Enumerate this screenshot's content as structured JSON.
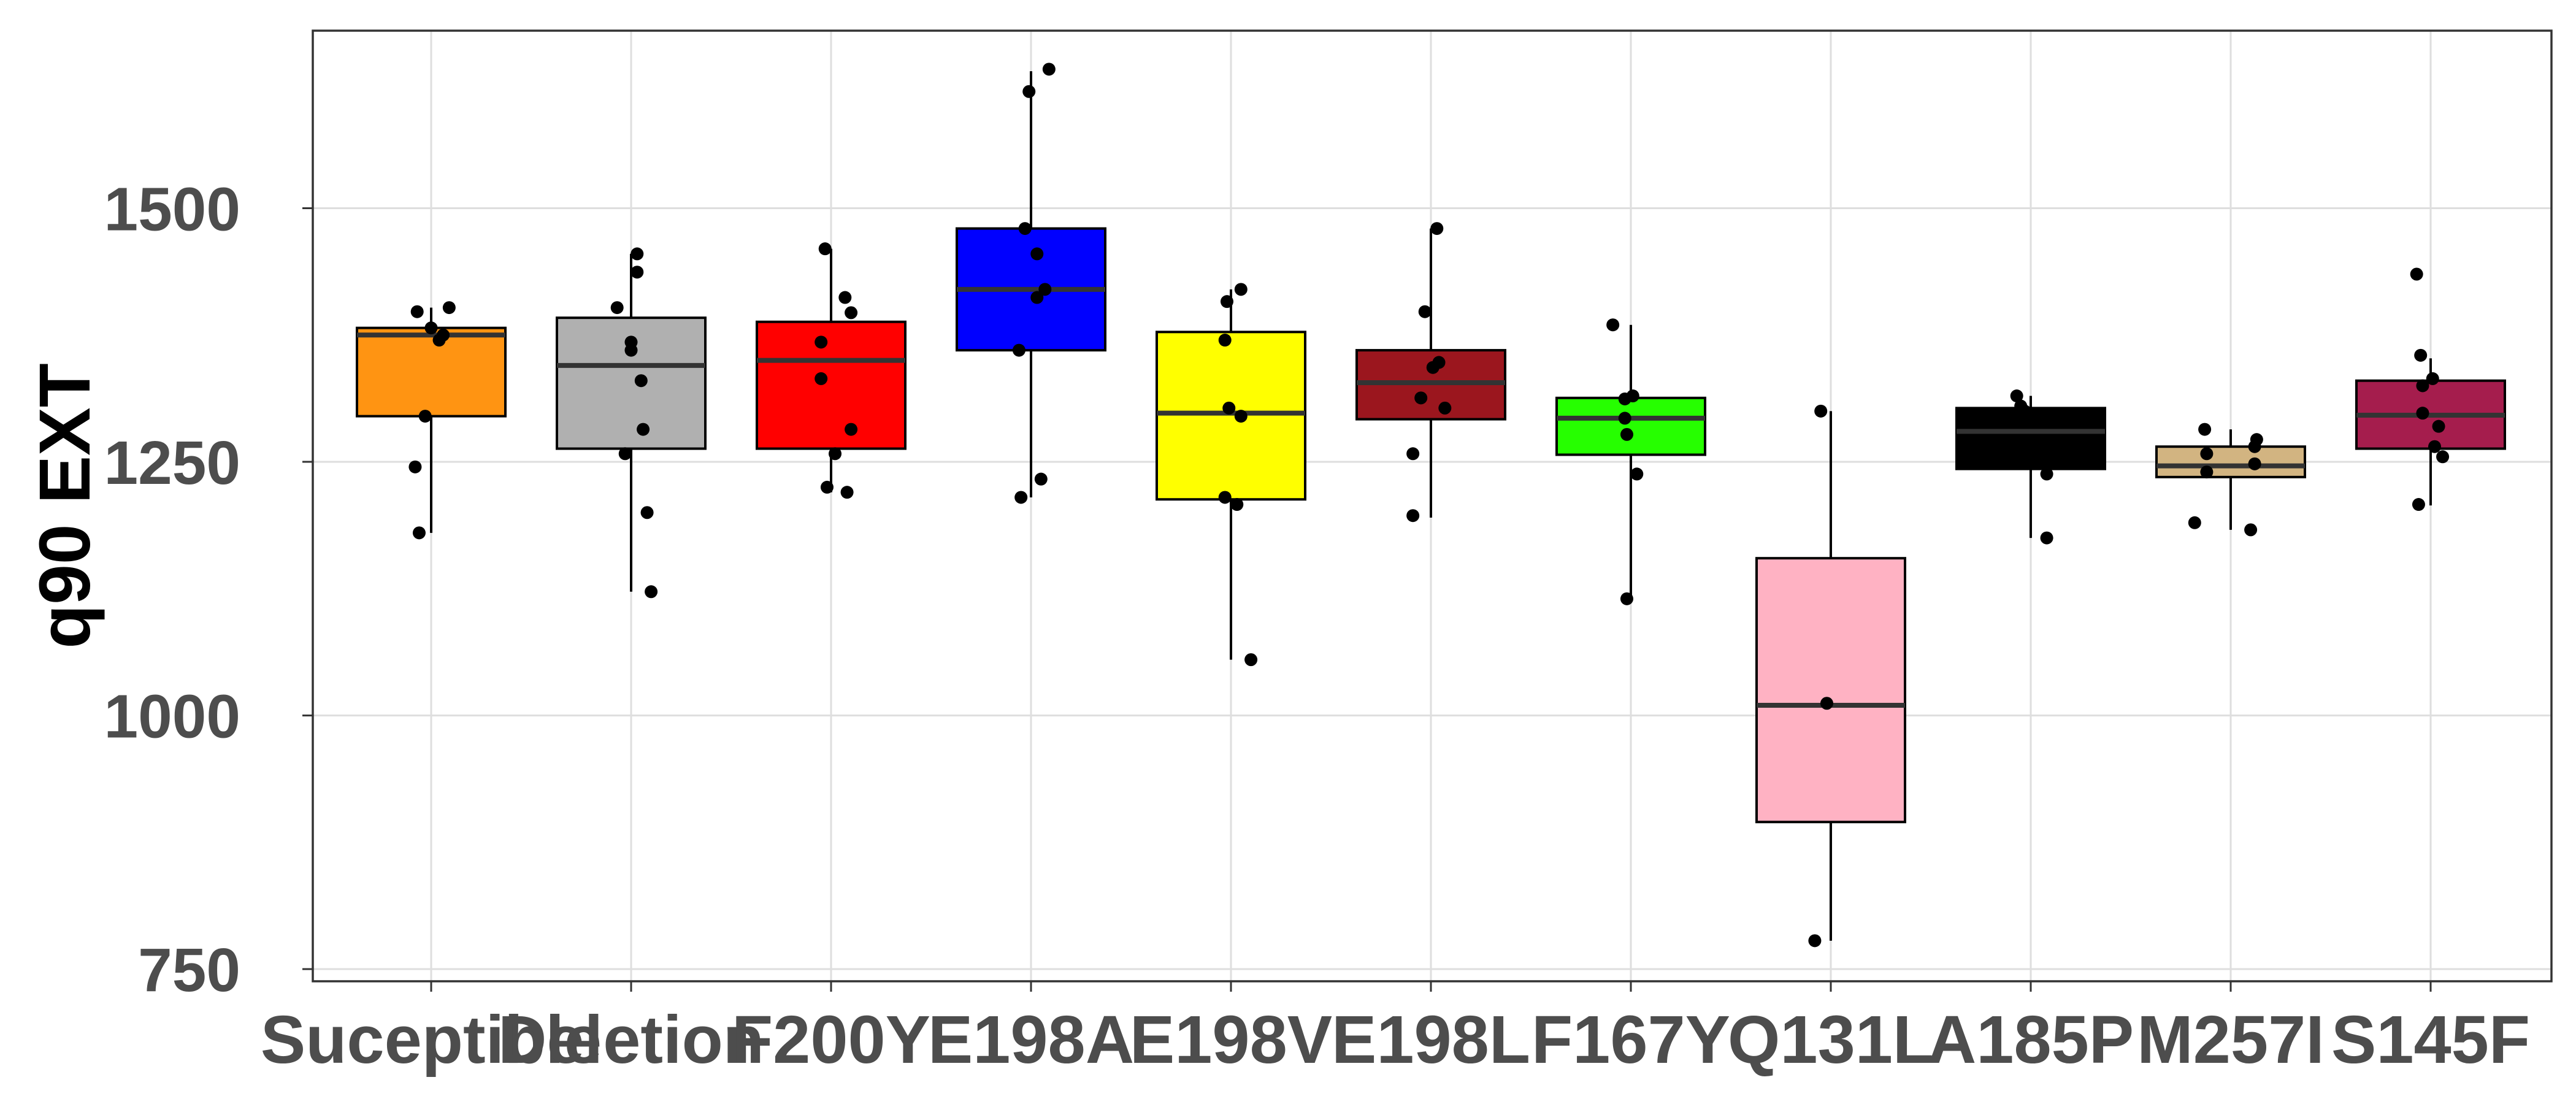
{
  "chart_data": {
    "type": "boxplot",
    "title": "",
    "xlabel": "",
    "ylabel": "q90 EXT",
    "ylim": [
      738,
      1675
    ],
    "yticks": [
      750,
      1000,
      1250,
      1500
    ],
    "grid": true,
    "legend": "none",
    "categories": [
      "Suceptible",
      "Deletion",
      "F200Y",
      "E198A",
      "E198V",
      "E198L",
      "F167Y",
      "Q131L",
      "A185P",
      "M257I",
      "S145F"
    ],
    "colors": [
      "#ff9412",
      "#b0b0b0",
      "#ff0000",
      "#0000ff",
      "#ffff00",
      "#9b161e",
      "#26ff00",
      "#ffb2c3",
      "#000000",
      "#d2b481",
      "#a51d4d"
    ],
    "boxes": [
      {
        "category": "Suceptible",
        "whisker_low": 1180,
        "q1": 1295,
        "median": 1375,
        "q3": 1382,
        "whisker_high": 1402
      },
      {
        "category": "Deletion",
        "whisker_low": 1122,
        "q1": 1263,
        "median": 1345,
        "q3": 1392,
        "whisker_high": 1455
      },
      {
        "category": "F200Y",
        "whisker_low": 1220,
        "q1": 1263,
        "median": 1350,
        "q3": 1388,
        "whisker_high": 1460
      },
      {
        "category": "E198A",
        "whisker_low": 1215,
        "q1": 1360,
        "median": 1420,
        "q3": 1480,
        "whisker_high": 1635
      },
      {
        "category": "E198V",
        "whisker_low": 1055,
        "q1": 1213,
        "median": 1298,
        "q3": 1378,
        "whisker_high": 1420
      },
      {
        "category": "E198L",
        "whisker_low": 1195,
        "q1": 1292,
        "median": 1328,
        "q3": 1360,
        "whisker_high": 1480
      },
      {
        "category": "F167Y",
        "whisker_low": 1115,
        "q1": 1257,
        "median": 1293,
        "q3": 1313,
        "whisker_high": 1385
      },
      {
        "category": "Q131L",
        "whisker_low": 778,
        "q1": 895,
        "median": 1010,
        "q3": 1155,
        "whisker_high": 1300
      },
      {
        "category": "A185P",
        "whisker_low": 1175,
        "q1": 1243,
        "median": 1280,
        "q3": 1303,
        "whisker_high": 1315
      },
      {
        "category": "M257I",
        "whisker_low": 1183,
        "q1": 1235,
        "median": 1246,
        "q3": 1265,
        "whisker_high": 1282
      },
      {
        "category": "S145F",
        "whisker_low": 1207,
        "q1": 1263,
        "median": 1296,
        "q3": 1330,
        "whisker_high": 1352
      }
    ],
    "points": [
      {
        "category": "Suceptible",
        "values": [
          1398,
          1402,
          1382,
          1375,
          1370,
          1295,
          1245,
          1180
        ],
        "jitter": [
          -0.07,
          0.09,
          0.0,
          0.06,
          0.04,
          -0.03,
          -0.08,
          -0.06
        ]
      },
      {
        "category": "Deletion",
        "values": [
          1455,
          1437,
          1402,
          1368,
          1360,
          1330,
          1282,
          1258,
          1200,
          1122
        ],
        "jitter": [
          0.03,
          0.03,
          -0.07,
          0.0,
          0.0,
          0.05,
          0.06,
          -0.03,
          0.08,
          0.1
        ]
      },
      {
        "category": "F200Y",
        "values": [
          1460,
          1412,
          1397,
          1368,
          1332,
          1282,
          1258,
          1225,
          1220
        ],
        "jitter": [
          -0.03,
          0.07,
          0.1,
          -0.05,
          -0.05,
          0.1,
          0.02,
          -0.02,
          0.08
        ]
      },
      {
        "category": "E198A",
        "values": [
          1637,
          1615,
          1480,
          1455,
          1420,
          1412,
          1360,
          1233,
          1215
        ],
        "jitter": [
          0.09,
          -0.01,
          -0.03,
          0.03,
          0.07,
          0.03,
          -0.06,
          0.05,
          -0.05
        ]
      },
      {
        "category": "E198V",
        "values": [
          1420,
          1408,
          1370,
          1303,
          1295,
          1215,
          1208,
          1055
        ],
        "jitter": [
          0.05,
          -0.02,
          -0.03,
          -0.01,
          0.05,
          -0.03,
          0.03,
          0.1
        ]
      },
      {
        "category": "E198L",
        "values": [
          1480,
          1398,
          1348,
          1343,
          1313,
          1303,
          1258,
          1197
        ],
        "jitter": [
          0.03,
          -0.03,
          0.04,
          0.01,
          -0.05,
          0.07,
          -0.09,
          -0.09
        ]
      },
      {
        "category": "F167Y",
        "values": [
          1385,
          1315,
          1312,
          1293,
          1277,
          1238,
          1115
        ],
        "jitter": [
          -0.09,
          0.01,
          -0.03,
          -0.03,
          -0.02,
          0.03,
          -0.02
        ]
      },
      {
        "category": "Q131L",
        "values": [
          1300,
          1012,
          778
        ],
        "jitter": [
          -0.05,
          -0.02,
          -0.08
        ]
      },
      {
        "category": "A185P",
        "values": [
          1315,
          1305,
          1300,
          1238,
          1175
        ],
        "jitter": [
          -0.07,
          -0.05,
          -0.03,
          0.08,
          0.08
        ]
      },
      {
        "category": "M257I",
        "values": [
          1282,
          1272,
          1265,
          1258,
          1248,
          1240,
          1190,
          1183
        ],
        "jitter": [
          -0.13,
          0.13,
          0.12,
          -0.12,
          0.12,
          -0.12,
          -0.18,
          0.1
        ]
      },
      {
        "category": "S145F",
        "values": [
          1435,
          1355,
          1332,
          1325,
          1298,
          1285,
          1265,
          1255,
          1208
        ],
        "jitter": [
          -0.07,
          -0.05,
          0.01,
          -0.04,
          -0.04,
          0.04,
          0.02,
          0.06,
          -0.06
        ]
      }
    ]
  }
}
